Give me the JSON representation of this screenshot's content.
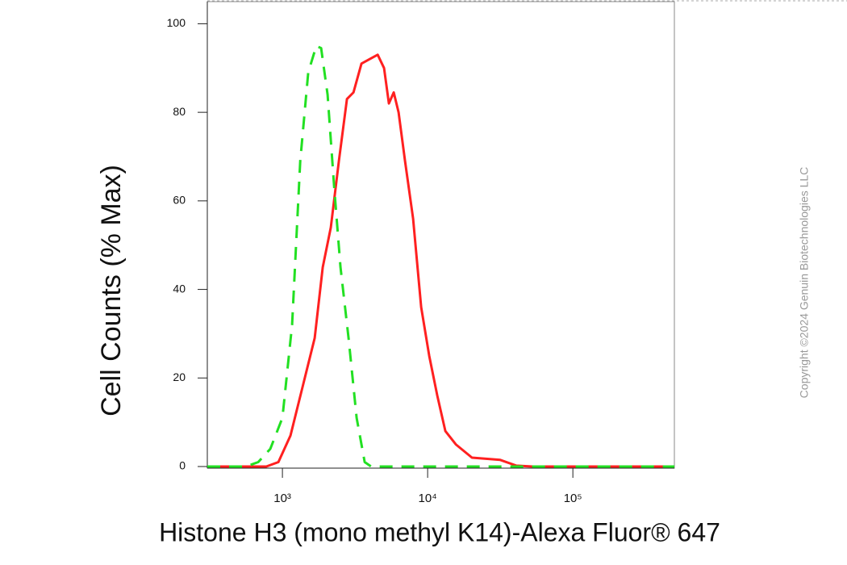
{
  "chart_data": {
    "type": "line",
    "xlabel": "Histone H3 (mono methyl K14)-Alexa Fluor® 647",
    "ylabel": "Cell Counts (% Max)",
    "annotation": "Copyright ©2024 Genuin Biotechnologies LLC",
    "xscale": "log",
    "xlim": [
      304,
      500000
    ],
    "ylim": [
      0,
      105
    ],
    "xticks": [
      {
        "value": 1000,
        "label": "10³"
      },
      {
        "value": 10000,
        "label": "10⁴"
      },
      {
        "value": 100000,
        "label": "10⁵"
      }
    ],
    "yticks": [
      0,
      20,
      40,
      60,
      80,
      100
    ],
    "series": [
      {
        "color": "#ff2020",
        "dash": false,
        "x": [
          304,
          774,
          938,
          1136,
          1377,
          1668,
          1896,
          2154,
          2448,
          2783,
          3084,
          3502,
          3981,
          4527,
          5012,
          5412,
          5843,
          6310,
          6988,
          7943,
          9028,
          10260,
          11660,
          13250,
          15640,
          20200,
          31620,
          40840,
          52750,
          500000
        ],
        "values": [
          0,
          0,
          1,
          7,
          18,
          29,
          45,
          54,
          69,
          83,
          84.5,
          91,
          92,
          93,
          90,
          82,
          84.5,
          80,
          69,
          56,
          36,
          25,
          16,
          8,
          5,
          2,
          1.5,
          0.2,
          0,
          0
        ]
      },
      {
        "color": "#22e022",
        "dash": true,
        "x": [
          304,
          562,
          681,
          825,
          1000,
          1166,
          1326,
          1506,
          1711,
          1848,
          2047,
          2268,
          2512,
          2855,
          3245,
          3687,
          4084,
          500000
        ],
        "values": [
          0,
          0,
          1,
          4,
          11,
          32,
          69,
          89,
          95,
          94.5,
          84,
          63.5,
          45,
          29,
          11,
          1,
          0,
          0
        ]
      }
    ]
  }
}
